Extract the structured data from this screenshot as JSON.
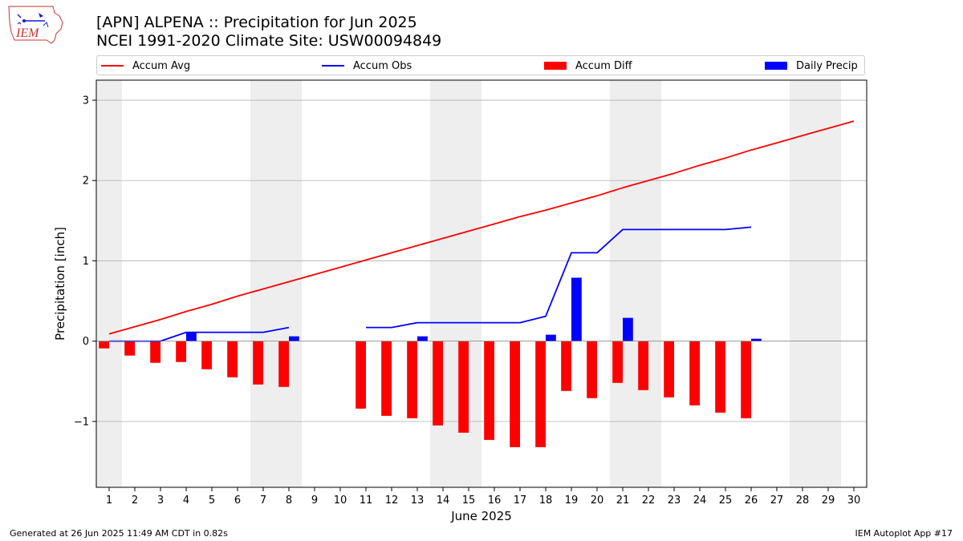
{
  "header": {
    "logo_text": "IEM",
    "title_line1": "[APN] ALPENA :: Precipitation for Jun 2025",
    "title_line2": "NCEI 1991-2020 Climate Site: USW00094849"
  },
  "footer": {
    "left": "Generated at 26 Jun 2025 11:49 AM CDT in 0.82s",
    "right": "IEM Autoplot App #17"
  },
  "colors": {
    "accum_avg": "#ff0000",
    "accum_obs": "#0000ff",
    "accum_diff": "#ff0000",
    "daily_precip": "#0000ff",
    "weekend_shade": "#eeeeee",
    "grid": "#b0b0b0"
  },
  "chart_data": {
    "type": "bar",
    "xlabel": "June 2025",
    "ylabel": "Precipitation [inch]",
    "xlim": [
      0.5,
      30.5
    ],
    "ylim": [
      -1.82,
      3.25
    ],
    "yticks": [
      -1,
      0,
      1,
      2,
      3
    ],
    "ytick_labels": [
      "−1",
      "0",
      "1",
      "2",
      "3"
    ],
    "days": [
      1,
      2,
      3,
      4,
      5,
      6,
      7,
      8,
      9,
      10,
      11,
      12,
      13,
      14,
      15,
      16,
      17,
      18,
      19,
      20,
      21,
      22,
      23,
      24,
      25,
      26,
      27,
      28,
      29,
      30
    ],
    "grid": true,
    "legend_position": "top",
    "weekend_spans": [
      [
        0.5,
        1.5
      ],
      [
        6.5,
        8.5
      ],
      [
        13.5,
        15.5
      ],
      [
        20.5,
        22.5
      ],
      [
        27.5,
        29.5
      ]
    ],
    "series": [
      {
        "name": "Accum Avg",
        "type": "line",
        "values": [
          0.09,
          0.18,
          0.27,
          0.37,
          0.46,
          0.56,
          0.65,
          0.74,
          0.83,
          0.92,
          1.01,
          1.1,
          1.19,
          1.28,
          1.37,
          1.46,
          1.55,
          1.63,
          1.72,
          1.81,
          1.91,
          2.0,
          2.09,
          2.19,
          2.28,
          2.38,
          2.47,
          2.56,
          2.65,
          2.74
        ]
      },
      {
        "name": "Accum Obs",
        "type": "line",
        "values": [
          0.0,
          0.0,
          0.0,
          0.11,
          0.11,
          0.11,
          0.11,
          0.17,
          null,
          null,
          0.17,
          0.17,
          0.23,
          0.23,
          0.23,
          0.23,
          0.23,
          0.31,
          1.1,
          1.1,
          1.39,
          1.39,
          1.39,
          1.39,
          1.39,
          1.42,
          null,
          null,
          null,
          null
        ]
      },
      {
        "name": "Accum Diff",
        "type": "bar",
        "values": [
          -0.09,
          -0.18,
          -0.27,
          -0.26,
          -0.35,
          -0.45,
          -0.54,
          -0.57,
          null,
          null,
          -0.84,
          -0.93,
          -0.96,
          -1.05,
          -1.14,
          -1.23,
          -1.32,
          -1.32,
          -0.62,
          -0.71,
          -0.52,
          -0.61,
          -0.7,
          -0.8,
          -0.89,
          -0.96,
          null,
          null,
          null,
          null
        ]
      },
      {
        "name": "Daily Precip",
        "type": "bar",
        "values": [
          0,
          0,
          0,
          0.11,
          0,
          0,
          0,
          0.06,
          null,
          null,
          0,
          0,
          0.06,
          0,
          0,
          0,
          0,
          0.08,
          0.79,
          0,
          0.29,
          0,
          0,
          0,
          0,
          0.03,
          null,
          null,
          null,
          null
        ]
      }
    ]
  }
}
